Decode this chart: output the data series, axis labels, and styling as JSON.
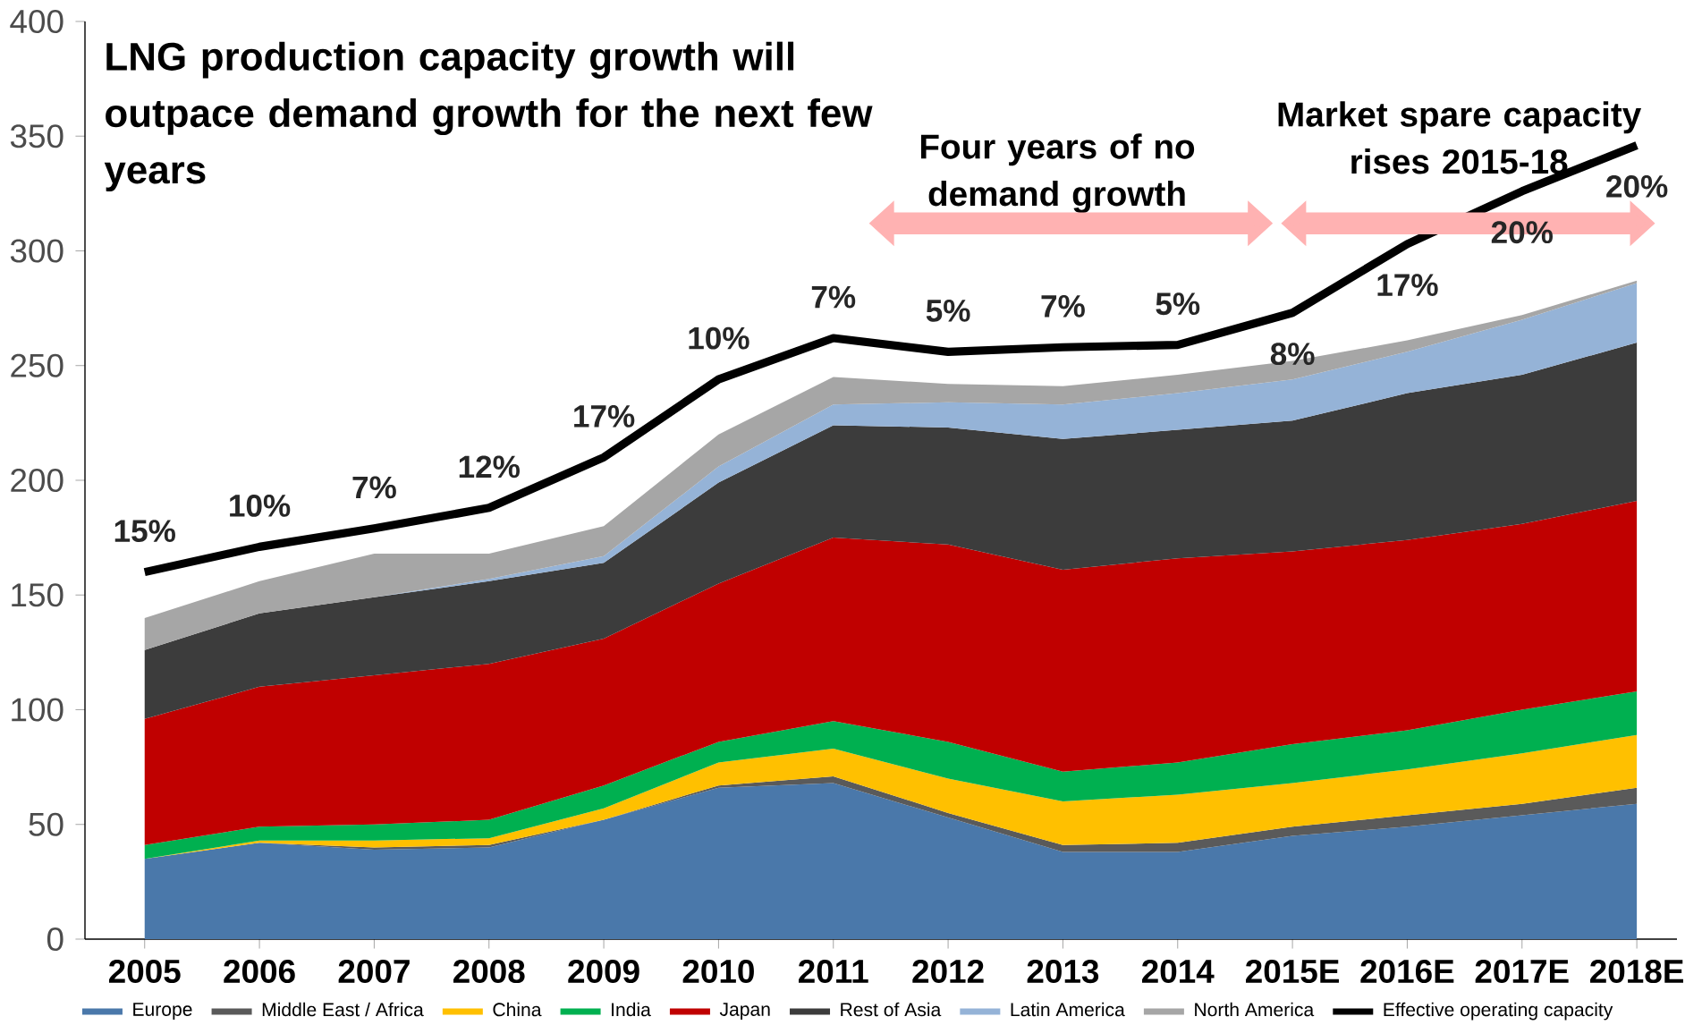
{
  "chart_data": {
    "type": "area",
    "stacked": true,
    "title": "LNG production capacity growth will outpace demand growth for the next few years",
    "categories": [
      "2005",
      "2006",
      "2007",
      "2008",
      "2009",
      "2010",
      "2011",
      "2012",
      "2013",
      "2014",
      "2015E",
      "2016E",
      "2017E",
      "2018E"
    ],
    "ylim": [
      0,
      400
    ],
    "yticks": [
      0,
      50,
      100,
      150,
      200,
      250,
      300,
      350,
      400
    ],
    "grid": false,
    "legend": "bottom",
    "annotations": [
      "Four years of no demand growth",
      "Market spare capacity rises 2015-18",
      "15%",
      "10%",
      "7%",
      "12%",
      "17%",
      "10%",
      "7%",
      "5%",
      "7%",
      "5%",
      "8%",
      "17%",
      "20%",
      "20%"
    ],
    "series": [
      {
        "name": "Europe",
        "color": "#4a78aa",
        "values": [
          35,
          42,
          39,
          40,
          52,
          66,
          68,
          53,
          38,
          38,
          45,
          49,
          54,
          59
        ]
      },
      {
        "name": "Middle East / Africa",
        "color": "#5a5a5a",
        "values": [
          0,
          0,
          1,
          1,
          0,
          1,
          3,
          2,
          3,
          4,
          4,
          5,
          5,
          7
        ]
      },
      {
        "name": "China",
        "color": "#ffc000",
        "values": [
          0,
          1,
          3,
          3,
          5,
          10,
          12,
          15,
          19,
          21,
          19,
          20,
          22,
          23
        ]
      },
      {
        "name": "India",
        "color": "#00b050",
        "values": [
          6,
          6,
          7,
          8,
          10,
          9,
          12,
          16,
          13,
          14,
          17,
          17,
          19,
          19
        ]
      },
      {
        "name": "Japan",
        "color": "#c00000",
        "values": [
          55,
          61,
          65,
          68,
          64,
          69,
          80,
          86,
          88,
          89,
          84,
          83,
          81,
          83
        ]
      },
      {
        "name": "Rest of Asia",
        "color": "#3c3c3c",
        "values": [
          30,
          32,
          34,
          36,
          33,
          44,
          49,
          51,
          57,
          56,
          57,
          64,
          65,
          69
        ]
      },
      {
        "name": "Latin America",
        "color": "#95b3d7",
        "values": [
          0,
          0,
          0,
          1,
          3,
          7,
          9,
          11,
          15,
          16,
          18,
          18,
          24,
          26
        ]
      },
      {
        "name": "North America",
        "color": "#a6a6a6",
        "values": [
          14,
          14,
          19,
          11,
          13,
          14,
          12,
          8,
          8,
          8,
          8,
          5,
          2,
          1
        ]
      },
      {
        "name": "Effective operating capacity",
        "type": "line",
        "color": "#000000",
        "values": [
          160,
          171,
          179,
          188,
          210,
          244,
          262,
          256,
          258,
          259,
          273,
          303,
          326,
          346
        ]
      }
    ]
  }
}
